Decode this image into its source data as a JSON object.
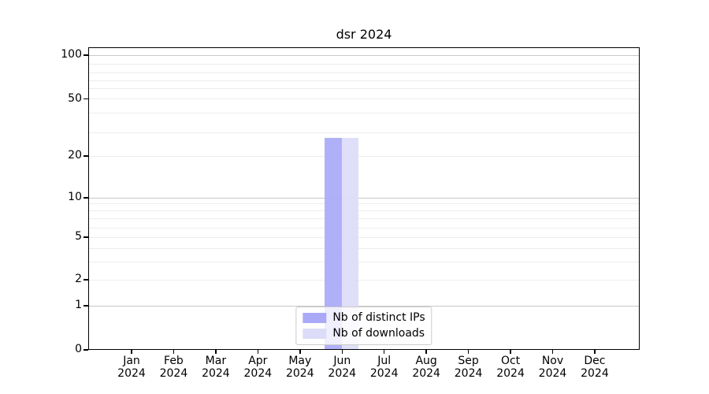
{
  "title": "dsr 2024",
  "chart_data": {
    "type": "bar",
    "title": "dsr 2024",
    "categories": [
      "Jan 2024",
      "Feb 2024",
      "Mar 2024",
      "Apr 2024",
      "May 2024",
      "Jun 2024",
      "Jul 2024",
      "Aug 2024",
      "Sep 2024",
      "Oct 2024",
      "Nov 2024",
      "Dec 2024"
    ],
    "series": [
      {
        "name": "Nb of distinct IPs",
        "color": "#a9a9f8",
        "values": [
          0,
          0,
          0,
          0,
          0,
          27,
          0,
          0,
          0,
          0,
          0,
          0
        ]
      },
      {
        "name": "Nb of downloads",
        "color": "#dcdcf8",
        "values": [
          0,
          0,
          0,
          0,
          0,
          27,
          0,
          0,
          0,
          0,
          0,
          0
        ]
      }
    ],
    "xlabel": "",
    "ylabel": "",
    "y_axis": {
      "scale": "symlog",
      "ticks": [
        0,
        1,
        2,
        5,
        10,
        20,
        50,
        100
      ],
      "minor_gridlines": [
        2,
        3,
        4,
        5,
        6,
        7,
        8,
        9,
        20,
        30,
        40,
        50,
        60,
        70,
        80,
        90
      ],
      "major_gridlines": [
        1,
        10,
        100
      ],
      "ylim": [
        0,
        118
      ]
    },
    "grid": {
      "enabled": true,
      "major_color": "#c8c8c8",
      "minor_color": "#ededed"
    },
    "legend": {
      "position": "lower center"
    },
    "bar_width_fraction": 0.4
  },
  "colors": {
    "background": "#ffffff",
    "spine": "#000000",
    "text": "#000000",
    "legend_border": "#cccccc"
  }
}
